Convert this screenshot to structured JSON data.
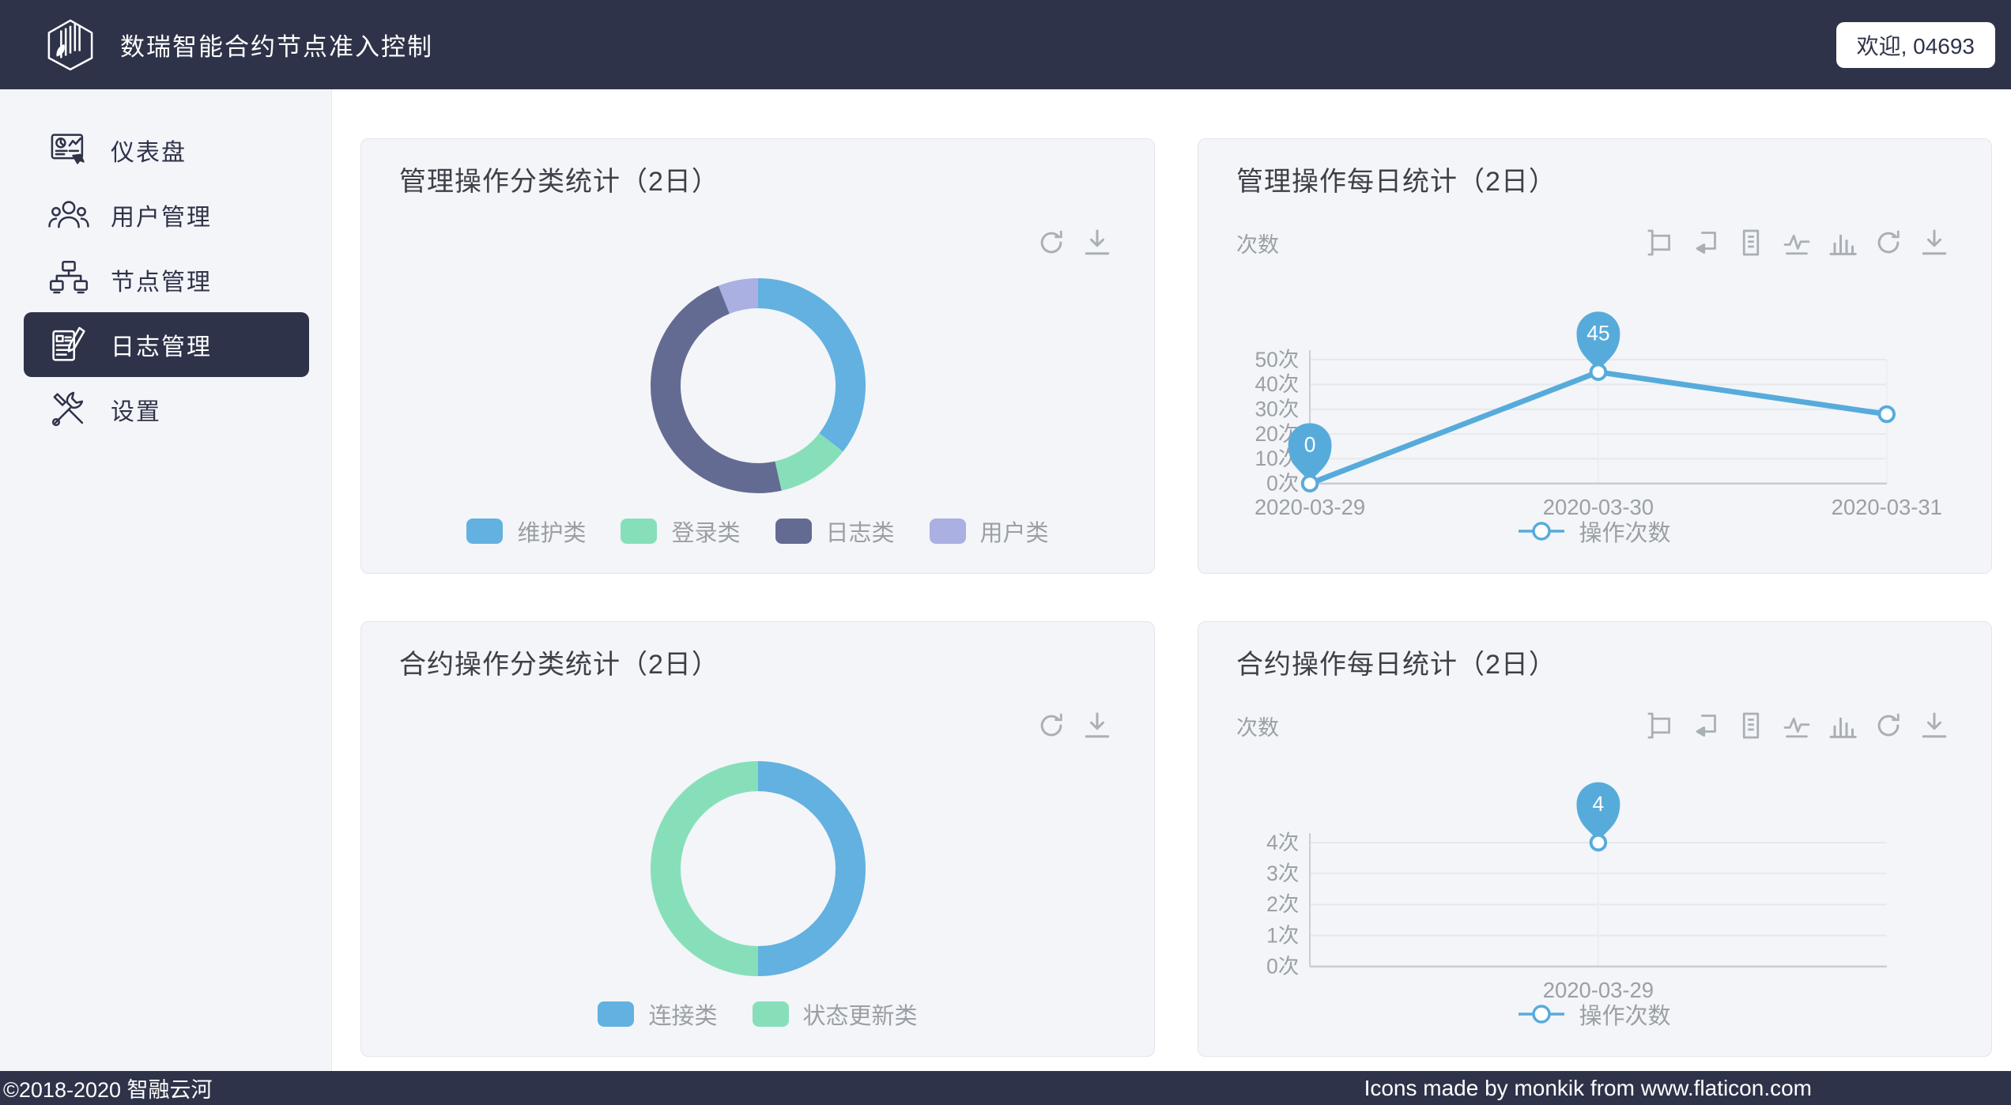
{
  "header": {
    "logo_icon": "hexagon-book-logo",
    "title": "数瑞智能合约节点准入控制",
    "welcome_button": "欢迎, 04693"
  },
  "sidebar": {
    "items": [
      {
        "key": "dashboard",
        "label": "仪表盘",
        "icon": "dashboard-icon",
        "selected": false
      },
      {
        "key": "users",
        "label": "用户管理",
        "icon": "users-icon",
        "selected": false
      },
      {
        "key": "nodes",
        "label": "节点管理",
        "icon": "nodes-icon",
        "selected": false
      },
      {
        "key": "logs",
        "label": "日志管理",
        "icon": "logs-icon",
        "selected": true
      },
      {
        "key": "settings",
        "label": "设置",
        "icon": "settings-icon",
        "selected": false
      }
    ]
  },
  "chart_data": [
    {
      "id": "admin-ops-category",
      "type": "pie",
      "title": "管理操作分类统计（2日）",
      "legend": [
        "维护类",
        "登录类",
        "日志类",
        "用户类"
      ],
      "series": [
        {
          "name": "维护类",
          "value_pct_est": 35.5,
          "color": "#62b1e0"
        },
        {
          "name": "登录类",
          "value_pct_est": 11.0,
          "color": "#87dfba"
        },
        {
          "name": "日志类",
          "value_pct_est": 47.5,
          "color": "#646b93"
        },
        {
          "name": "用户类",
          "value_pct_est": 6.0,
          "color": "#aab0e2"
        }
      ],
      "legend_position": "bottom",
      "toolbar": [
        "refresh-icon",
        "download-icon"
      ]
    },
    {
      "id": "admin-ops-daily",
      "type": "line",
      "title": "管理操作每日统计（2日）",
      "ylabel": "次数",
      "x": [
        "2020-03-29",
        "2020-03-30",
        "2020-03-31"
      ],
      "values": [
        0,
        45,
        28
      ],
      "yticks": [
        "0次",
        "10次",
        "20次",
        "30次",
        "40次",
        "50次"
      ],
      "ylim": [
        0,
        50
      ],
      "marked_points": [
        {
          "x": "2020-03-29",
          "label": "0"
        },
        {
          "x": "2020-03-30",
          "label": "45"
        }
      ],
      "legend": [
        "操作次数"
      ],
      "color": "#57abdb",
      "grid": true,
      "legend_position": "bottom",
      "toolbar": [
        "zoom-icon",
        "zoom-reset-icon",
        "data-view-icon",
        "line-chart-icon",
        "bar-chart-icon",
        "refresh-icon",
        "download-icon"
      ]
    },
    {
      "id": "contract-ops-category",
      "type": "pie",
      "title": "合约操作分类统计（2日）",
      "legend": [
        "连接类",
        "状态更新类"
      ],
      "series": [
        {
          "name": "连接类",
          "value_pct_est": 50,
          "color": "#62b1e0"
        },
        {
          "name": "状态更新类",
          "value_pct_est": 50,
          "color": "#87dfba"
        }
      ],
      "legend_position": "bottom",
      "toolbar": [
        "refresh-icon",
        "download-icon"
      ]
    },
    {
      "id": "contract-ops-daily",
      "type": "line",
      "title": "合约操作每日统计（2日）",
      "ylabel": "次数",
      "x": [
        "2020-03-29"
      ],
      "values": [
        4
      ],
      "yticks": [
        "0次",
        "1次",
        "2次",
        "3次",
        "4次"
      ],
      "ylim": [
        0,
        4
      ],
      "marked_points": [
        {
          "x": "2020-03-29",
          "label": "4"
        }
      ],
      "legend": [
        "操作次数"
      ],
      "color": "#57abdb",
      "grid": true,
      "legend_position": "bottom",
      "toolbar": [
        "zoom-icon",
        "zoom-reset-icon",
        "data-view-icon",
        "line-chart-icon",
        "bar-chart-icon",
        "refresh-icon",
        "download-icon"
      ]
    }
  ],
  "footer": {
    "left": "©2018-2020 智融云河",
    "right": "Icons made by monkik from www.flaticon.com"
  },
  "palette": {
    "navy": "#2f3349",
    "blue": "#62b1e0",
    "green": "#87dfba",
    "slate": "#646b93",
    "purple": "#aab0e2",
    "line_blue": "#57abdb",
    "card_bg": "#f3f5f8",
    "axis_text": "#9aa0a6",
    "icon_gray": "#a9afb5"
  }
}
